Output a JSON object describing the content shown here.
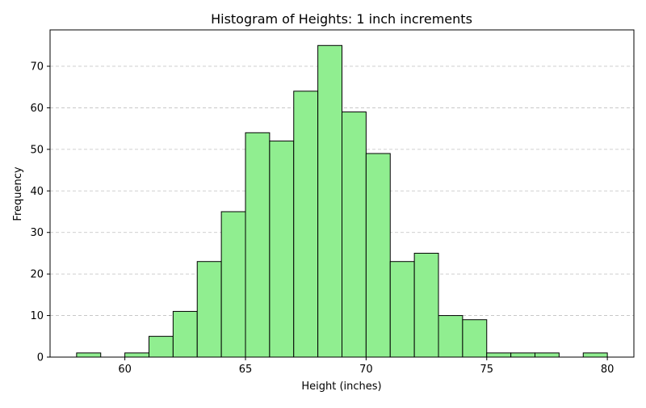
{
  "chart_data": {
    "type": "bar",
    "title": "Histogram of Heights: 1 inch increments",
    "xlabel": "Height (inches)",
    "ylabel": "Frequency",
    "bin_width": 1,
    "bins": [
      {
        "start": 58,
        "count": 1
      },
      {
        "start": 59,
        "count": 0
      },
      {
        "start": 60,
        "count": 1
      },
      {
        "start": 61,
        "count": 5
      },
      {
        "start": 62,
        "count": 11
      },
      {
        "start": 63,
        "count": 23
      },
      {
        "start": 64,
        "count": 35
      },
      {
        "start": 65,
        "count": 54
      },
      {
        "start": 66,
        "count": 52
      },
      {
        "start": 67,
        "count": 64
      },
      {
        "start": 68,
        "count": 75
      },
      {
        "start": 69,
        "count": 59
      },
      {
        "start": 70,
        "count": 49
      },
      {
        "start": 71,
        "count": 23
      },
      {
        "start": 72,
        "count": 25
      },
      {
        "start": 73,
        "count": 10
      },
      {
        "start": 74,
        "count": 9
      },
      {
        "start": 75,
        "count": 1
      },
      {
        "start": 76,
        "count": 1
      },
      {
        "start": 77,
        "count": 1
      },
      {
        "start": 78,
        "count": 0
      },
      {
        "start": 79,
        "count": 1
      }
    ],
    "xlim": [
      56.9,
      81.1
    ],
    "ylim": [
      0,
      78.75
    ],
    "xticks": [
      60,
      65,
      70,
      75,
      80
    ],
    "yticks": [
      0,
      10,
      20,
      30,
      40,
      50,
      60,
      70
    ],
    "grid": {
      "axis": "y",
      "style": "dashed",
      "color": "#c0c0c0"
    },
    "legend": "none",
    "colors": {
      "bar_fill": "#90ee90",
      "bar_edge": "#000000",
      "axes": "#000000"
    }
  }
}
